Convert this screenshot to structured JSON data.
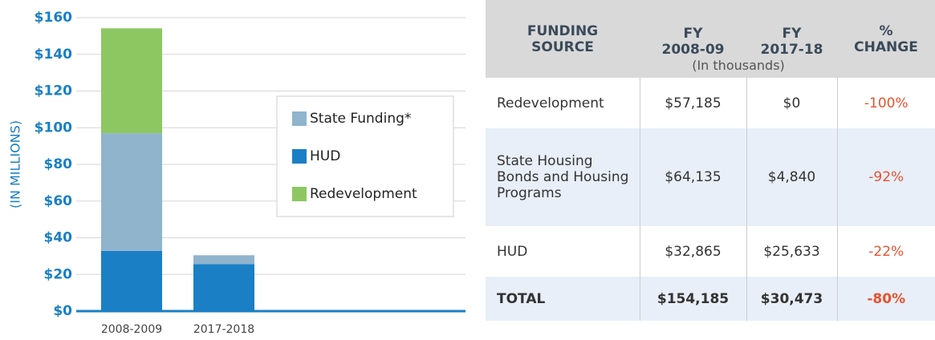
{
  "chart_data": {
    "type": "stacked_bar",
    "ylabel": "(IN MILLIONS)",
    "categories": [
      "2008-2009",
      "2017-2018"
    ],
    "series": [
      {
        "name": "HUD",
        "color": "#1a7fc4",
        "values": [
          32.865,
          25.633
        ]
      },
      {
        "name": "State Funding*",
        "color": "#8fb4cc",
        "values": [
          64.135,
          4.84
        ]
      },
      {
        "name": "Redevelopment",
        "color": "#8dc762",
        "values": [
          57.185,
          0
        ]
      }
    ],
    "ylim": [
      0,
      160
    ],
    "yticks": [
      {
        "value": 0,
        "label": "$0"
      },
      {
        "value": 20,
        "label": "$20"
      },
      {
        "value": 40,
        "label": "$40"
      },
      {
        "value": 60,
        "label": "$60"
      },
      {
        "value": 80,
        "label": "$80"
      },
      {
        "value": 100,
        "label": "$100"
      },
      {
        "value": 120,
        "label": "$120"
      },
      {
        "value": 140,
        "label": "$140"
      },
      {
        "value": 160,
        "label": "$160"
      }
    ],
    "grid": true
  },
  "table": {
    "headers": [
      [
        "FUNDING",
        "SOURCE"
      ],
      [
        "FY",
        "2008-09"
      ],
      [
        "FY",
        "2017-18"
      ],
      [
        "%",
        "CHANGE"
      ]
    ],
    "header_note": "(In thousands)",
    "rows": [
      [
        "Redevelopment",
        "$57,185",
        "$0",
        "-100%"
      ],
      [
        "State Housing Bonds and Housing Programs",
        "$64,135",
        "$4,840",
        "-92%"
      ],
      [
        "HUD",
        "$32,865",
        "$25,633",
        "-22%"
      ],
      [
        "TOTAL",
        "$154,185",
        "$30,473",
        "-80%"
      ]
    ]
  }
}
